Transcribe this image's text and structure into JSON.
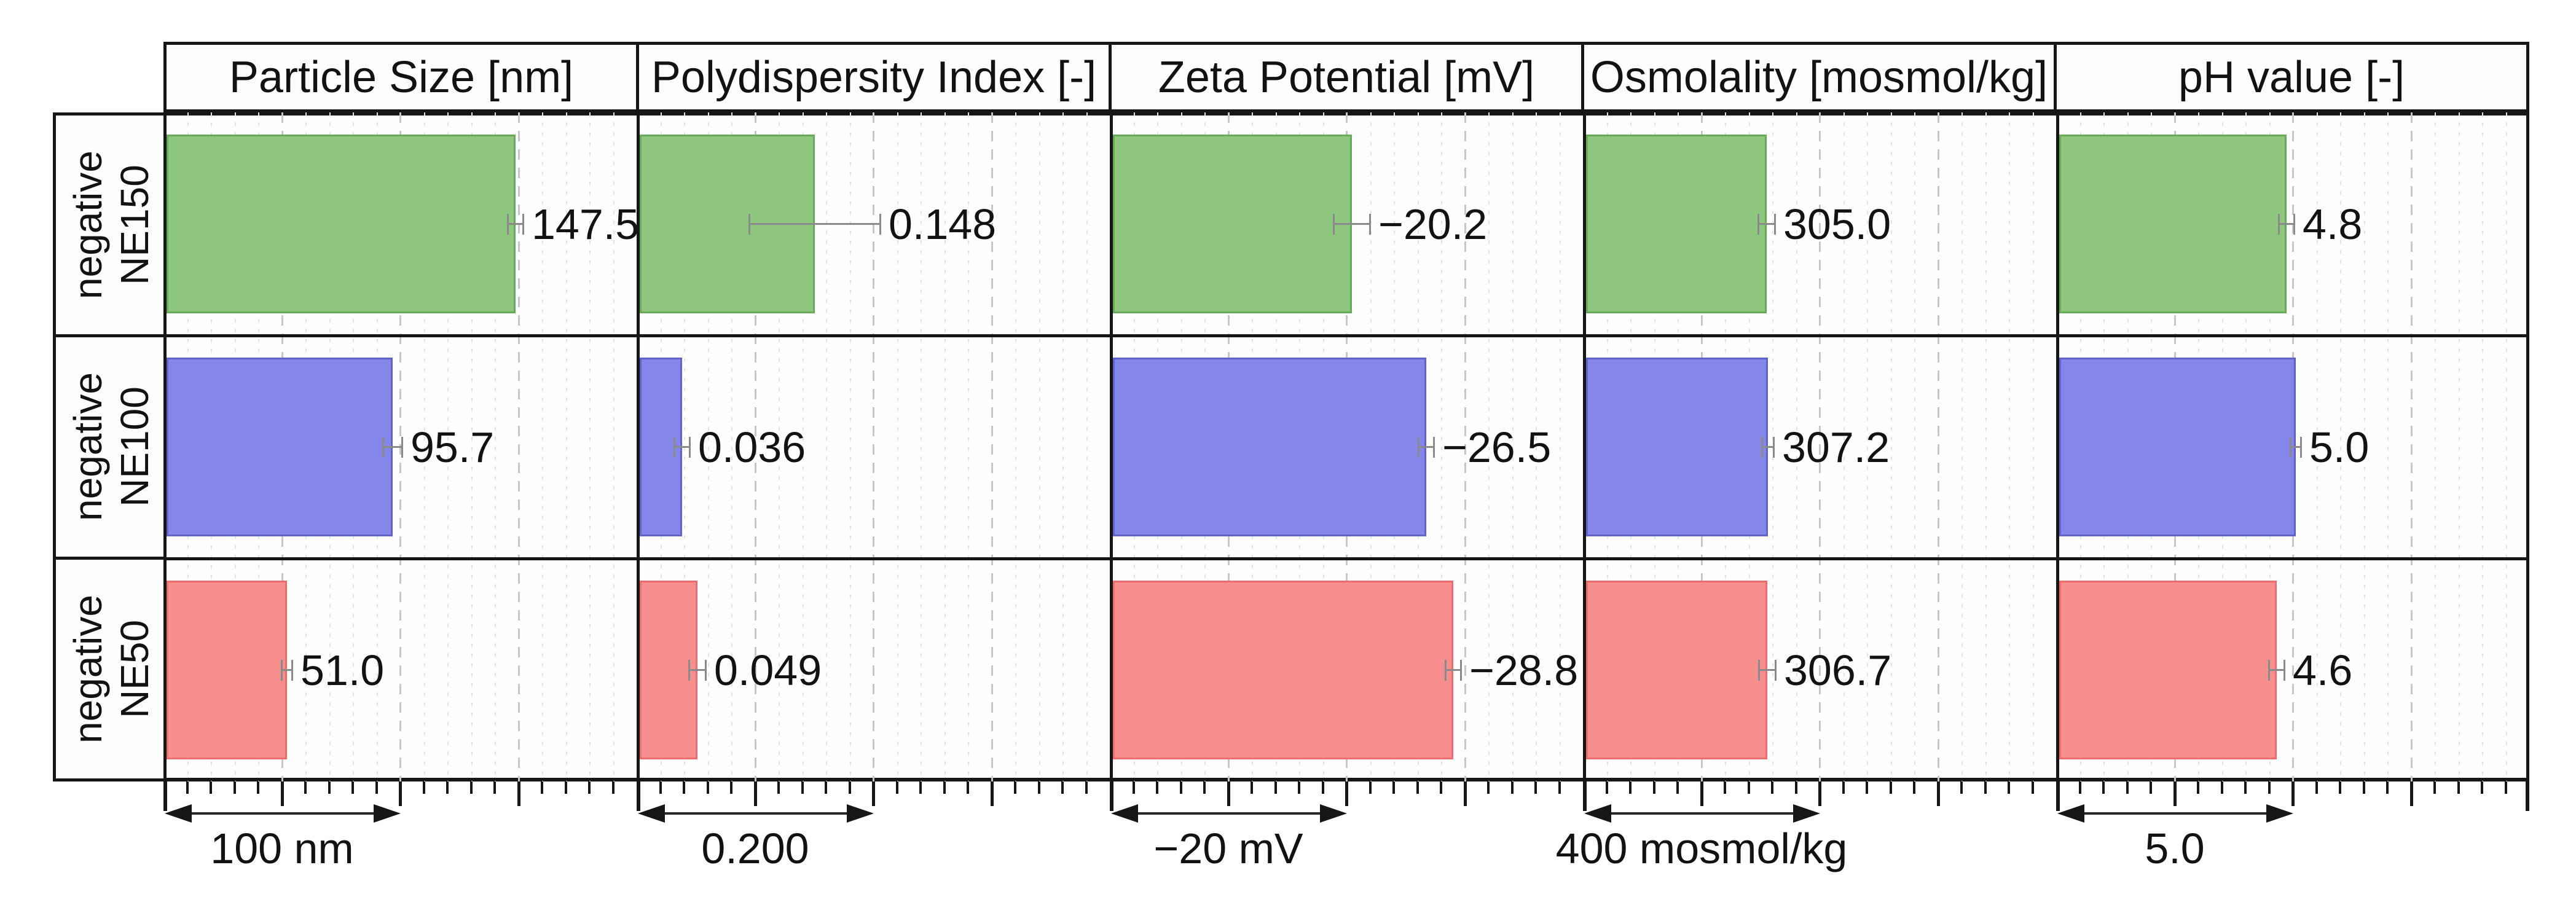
{
  "chart_data": {
    "type": "bar",
    "orientation": "horizontal",
    "legend": "none",
    "grid": "vertical major dashed + minor dotted",
    "categories": [
      "negative NE150",
      "negative NE100",
      "negative NE50"
    ],
    "row_labels": [
      {
        "line1": "negative",
        "line2": "NE150"
      },
      {
        "line1": "negative",
        "line2": "NE100"
      },
      {
        "line1": "negative",
        "line2": "NE50"
      }
    ],
    "series_colors": [
      {
        "fill": "#8FC77F",
        "edge": "#68A95A"
      },
      {
        "fill": "#8486EA",
        "edge": "#6163CC"
      },
      {
        "fill": "#F78F8F",
        "edge": "#EE6C6C"
      }
    ],
    "error_bar_color": "#8a8a8a",
    "panels": [
      {
        "id": "particle-size",
        "title": "Particle Size [nm]",
        "axis_min": 0,
        "axis_max": 200,
        "major_interval": 50,
        "minors_per_major": 5,
        "scale_bar": {
          "label": "100 nm",
          "span": 100
        },
        "values": [
          147.5,
          95.7,
          51.0
        ],
        "value_labels": [
          "147.5",
          "95.7",
          "51.0"
        ],
        "errors": [
          3,
          4,
          2
        ]
      },
      {
        "id": "polydispersity-index",
        "title": "Polydispersity Index [-]",
        "axis_min": 0,
        "axis_max": 0.4,
        "major_interval": 0.1,
        "minors_per_major": 5,
        "scale_bar": {
          "label": "0.200",
          "span": 0.2
        },
        "values": [
          0.148,
          0.036,
          0.049
        ],
        "value_labels": [
          "0.148",
          "0.036",
          "0.049"
        ],
        "errors": [
          0.055,
          0.006,
          0.007
        ]
      },
      {
        "id": "zeta-potential",
        "title": "Zeta Potential [mV]",
        "axis_min": 0,
        "axis_max": -40,
        "major_interval": -10,
        "minors_per_major": 5,
        "scale_bar": {
          "label": "−20 mV",
          "span": -20
        },
        "values": [
          -20.2,
          -26.5,
          -28.8
        ],
        "value_labels": [
          "−20.2",
          "−26.5",
          "−28.8"
        ],
        "errors": [
          1.5,
          0.6,
          0.6
        ]
      },
      {
        "id": "osmolality",
        "title": "Osmolality [mosmol/kg]",
        "axis_min": 0,
        "axis_max": 800,
        "major_interval": 200,
        "minors_per_major": 5,
        "scale_bar": {
          "label": "400 mosmol/kg",
          "span": 400
        },
        "values": [
          305.0,
          307.2,
          306.7
        ],
        "value_labels": [
          "305.0",
          "307.2",
          "306.7"
        ],
        "errors": [
          13,
          9,
          13
        ]
      },
      {
        "id": "ph-value",
        "title": "pH value [-]",
        "axis_min": 0,
        "axis_max": 10,
        "major_interval": 2.5,
        "minors_per_major": 5,
        "scale_bar": {
          "label": "5.0",
          "span": 5
        },
        "values": [
          4.8,
          5.0,
          4.6
        ],
        "value_labels": [
          "4.8",
          "5.0",
          "4.6"
        ],
        "errors": [
          0.15,
          0.1,
          0.15
        ]
      }
    ]
  }
}
